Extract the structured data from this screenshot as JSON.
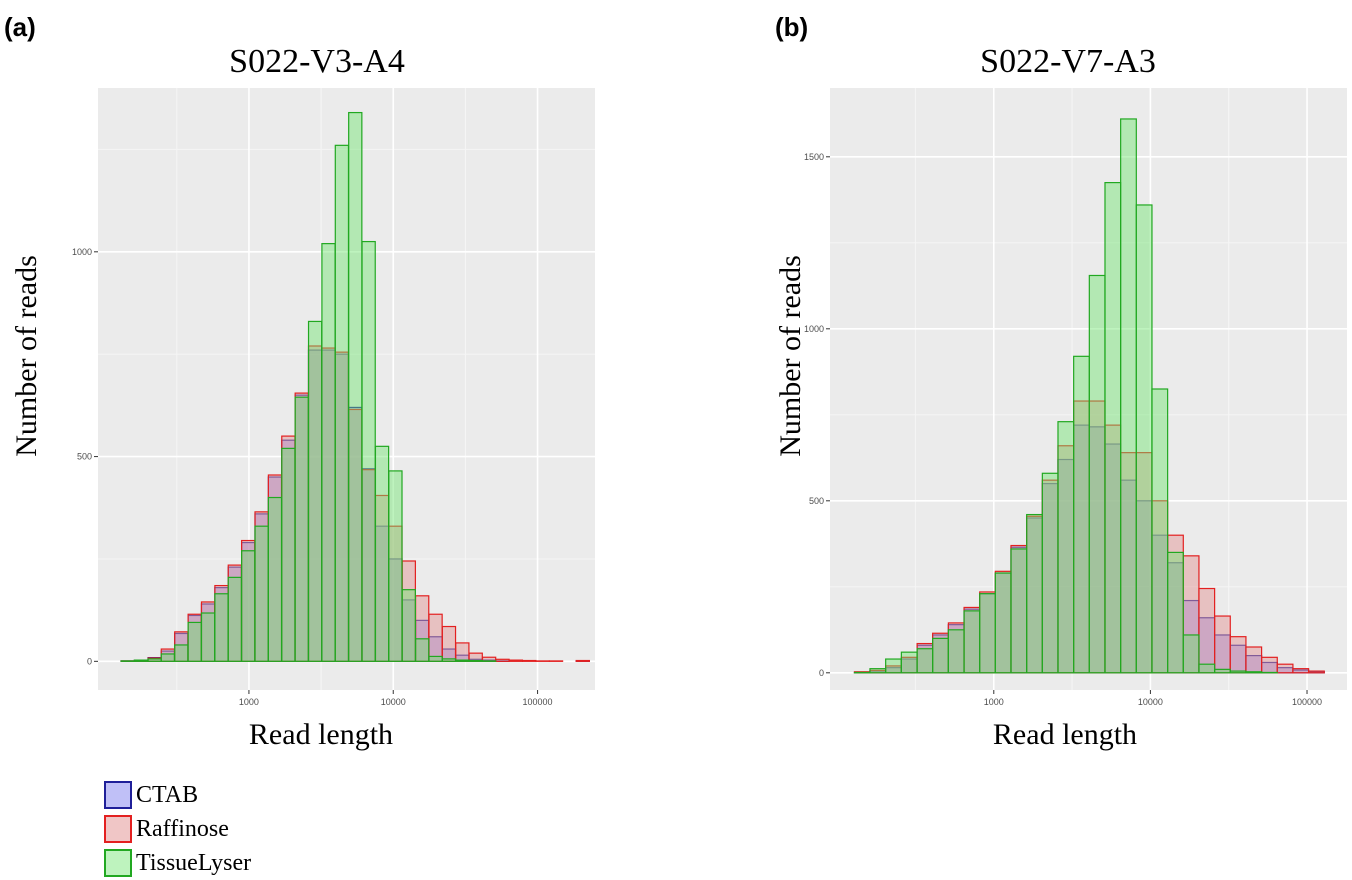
{
  "series_styles": [
    {
      "name": "CTAB",
      "fill": "#8c8cf0",
      "stroke": "#1f1f99"
    },
    {
      "name": "Raffinose",
      "fill": "#e49898",
      "stroke": "#e32020"
    },
    {
      "name": "TissueLyser",
      "fill": "#6ee56e",
      "stroke": "#21a821"
    }
  ],
  "chart_data": [
    {
      "type": "bar",
      "panel_label": "(a)",
      "title": "S022-V3-A4",
      "xlabel": "Read length",
      "ylabel": "Number of reads",
      "x_scale": "log10",
      "xlim": [
        90,
        250000
      ],
      "ylim": [
        -70,
        1400
      ],
      "x_ticks": [
        1000,
        10000,
        100000
      ],
      "x_tick_labels": [
        "1000",
        "10000",
        "100000"
      ],
      "y_ticks": [
        0,
        500,
        1000
      ],
      "y_tick_labels": [
        "0",
        "500",
        "1000"
      ],
      "bin_width_log10": 0.0913,
      "bin_lefts": [
        130,
        161,
        200,
        247,
        306,
        379,
        469,
        581,
        719,
        890,
        1102,
        1364,
        1689,
        2091,
        2588,
        3204,
        3967,
        4911,
        6080,
        7527,
        9319,
        11537,
        14283,
        17683,
        21893,
        27104,
        33555,
        41542,
        51430,
        63672,
        78826,
        97590,
        120820,
        149580,
        185180
      ],
      "series": [
        {
          "name": "CTAB",
          "values": [
            1,
            3,
            9,
            25,
            68,
            112,
            140,
            180,
            230,
            290,
            360,
            450,
            540,
            650,
            760,
            760,
            750,
            620,
            470,
            330,
            250,
            150,
            100,
            60,
            30,
            15,
            5,
            3,
            1,
            0,
            0,
            0,
            0,
            0,
            1
          ]
        },
        {
          "name": "Raffinose",
          "values": [
            1,
            3,
            8,
            30,
            72,
            115,
            145,
            185,
            235,
            295,
            365,
            455,
            550,
            655,
            770,
            765,
            755,
            615,
            468,
            405,
            330,
            245,
            160,
            115,
            85,
            45,
            20,
            10,
            5,
            3,
            2,
            1,
            1,
            0,
            2
          ]
        },
        {
          "name": "TissueLyser",
          "values": [
            1,
            3,
            6,
            18,
            40,
            95,
            118,
            165,
            205,
            270,
            330,
            400,
            520,
            645,
            830,
            1020,
            1260,
            1340,
            1025,
            525,
            465,
            175,
            55,
            12,
            6,
            3,
            2,
            1,
            0,
            0,
            0,
            0,
            0,
            0,
            0
          ]
        }
      ]
    },
    {
      "type": "bar",
      "panel_label": "(b)",
      "title": "S022-V7-A3",
      "xlabel": "Read length",
      "ylabel": "Number of reads",
      "x_scale": "log10",
      "xlim": [
        90,
        180000
      ],
      "ylim": [
        -50,
        1700
      ],
      "x_ticks": [
        1000,
        10000,
        100000
      ],
      "x_tick_labels": [
        "1000",
        "10000",
        "100000"
      ],
      "y_ticks": [
        0,
        500,
        1000,
        1500
      ],
      "y_tick_labels": [
        "0",
        "500",
        "1000",
        "1500"
      ],
      "bin_width_log10": 0.1,
      "bin_lefts": [
        129,
        162,
        204,
        257,
        324,
        407,
        513,
        646,
        813,
        1023,
        1288,
        1622,
        2042,
        2570,
        3236,
        4074,
        5129,
        6457,
        8128,
        10233,
        12882,
        16218,
        20417,
        25703,
        32359,
        40738,
        51286,
        64565,
        81283,
        102329
      ],
      "series": [
        {
          "name": "CTAB",
          "values": [
            2,
            5,
            15,
            40,
            80,
            110,
            140,
            185,
            230,
            290,
            365,
            450,
            550,
            620,
            720,
            715,
            665,
            560,
            500,
            400,
            320,
            210,
            160,
            110,
            80,
            50,
            30,
            15,
            8,
            3
          ]
        },
        {
          "name": "Raffinose",
          "values": [
            3,
            7,
            20,
            45,
            85,
            115,
            145,
            190,
            235,
            295,
            370,
            455,
            560,
            660,
            790,
            790,
            720,
            640,
            640,
            500,
            400,
            340,
            245,
            165,
            105,
            75,
            45,
            25,
            12,
            5
          ]
        },
        {
          "name": "TissueLyser",
          "values": [
            1,
            12,
            40,
            60,
            70,
            100,
            125,
            180,
            230,
            290,
            360,
            460,
            580,
            730,
            920,
            1155,
            1425,
            1610,
            1360,
            825,
            350,
            110,
            25,
            10,
            5,
            3,
            1,
            0,
            0,
            0
          ]
        }
      ]
    }
  ]
}
